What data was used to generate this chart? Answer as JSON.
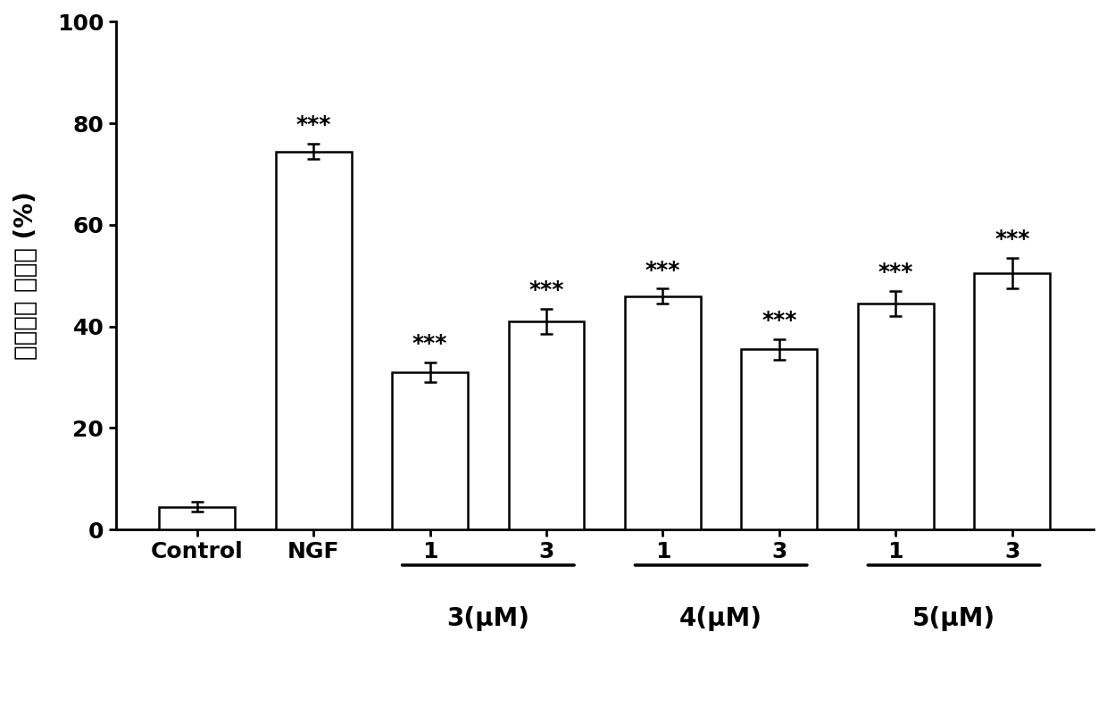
{
  "categories": [
    "Control",
    "NGF",
    "1",
    "3",
    "1",
    "3",
    "1",
    "3"
  ],
  "values": [
    4.5,
    74.5,
    31.0,
    41.0,
    46.0,
    35.5,
    44.5,
    50.5
  ],
  "errors": [
    1.0,
    1.5,
    2.0,
    2.5,
    1.5,
    2.0,
    2.5,
    3.0
  ],
  "bar_color": "#ffffff",
  "bar_edgecolor": "#000000",
  "bar_linewidth": 1.8,
  "significance": [
    "",
    "***",
    "***",
    "***",
    "***",
    "***",
    "***",
    "***"
  ],
  "ylabel_line1": "神经突起 分化率 (%)",
  "ylim": [
    0,
    100
  ],
  "yticks": [
    0,
    20,
    40,
    60,
    80,
    100
  ],
  "group_labels": [
    "3(μM)",
    "4(μM)",
    "5(μM)"
  ],
  "group_bar_ranges": [
    [
      3,
      4
    ],
    [
      5,
      6
    ],
    [
      7,
      8
    ]
  ],
  "background_color": "#ffffff",
  "tick_fontsize": 18,
  "ylabel_fontsize": 20,
  "significance_fontsize": 18,
  "group_label_fontsize": 20,
  "xtick_label_fontsize": 18,
  "bar_width": 0.65,
  "figure_width": 12.4,
  "figure_height": 8.11,
  "dpi": 100,
  "spine_linewidth": 2.0,
  "xlim": [
    -0.5,
    8.5
  ]
}
